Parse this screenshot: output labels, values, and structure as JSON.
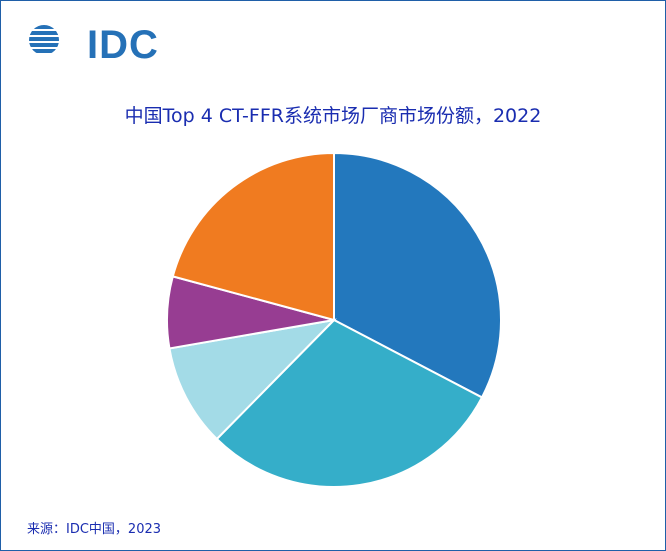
{
  "logo": {
    "text": "IDC"
  },
  "colors": {
    "accent": "#1a2db0",
    "logo": "#2571b7",
    "border": "#1f5fa8"
  },
  "chart_data": {
    "type": "pie",
    "title": "中国Top 4 CT-FFR系统市场厂商市场份额，2022",
    "start_angle_deg": 0,
    "direction": "clockwise",
    "slices": [
      {
        "value": 33,
        "color": "#2378bd"
      },
      {
        "value": 30,
        "color": "#35aec9"
      },
      {
        "value": 10,
        "color": "#a3dbe7"
      },
      {
        "value": 7,
        "color": "#973d92"
      },
      {
        "value": 21,
        "color": "#f07b20"
      }
    ],
    "legend": "none"
  },
  "footer": {
    "source": "来源：IDC中国，2023"
  }
}
